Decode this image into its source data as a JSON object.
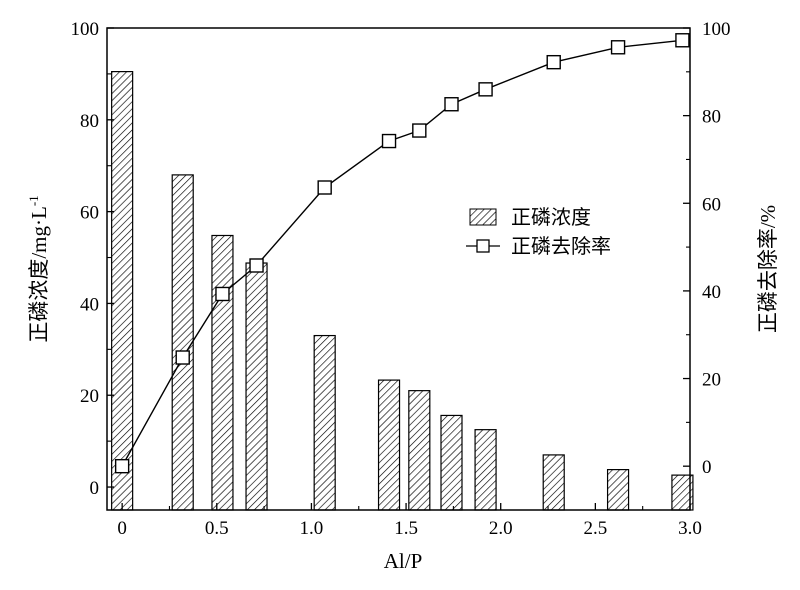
{
  "chart_data": {
    "type": "bar+line",
    "xlabel": "Al/P",
    "ylabel_left": "正磷浓度/mg·L",
    "ylabel_left_superscript": "-1",
    "ylabel_right": "正磷去除率/%",
    "xlim": [
      -0.08,
      3.0
    ],
    "ylim_left": [
      -5,
      100
    ],
    "ylim_right": [
      -10,
      100
    ],
    "x_ticks": [
      0,
      0.5,
      1.0,
      1.5,
      2.0,
      2.5,
      3.0
    ],
    "x_tick_labels": [
      "0",
      "0.5",
      "1.0",
      "1.5",
      "2.0",
      "2.5",
      "3.0"
    ],
    "y_left_ticks": [
      0,
      20,
      40,
      60,
      80,
      100
    ],
    "y_left_tick_labels": [
      "0",
      "20",
      "40",
      "60",
      "80",
      "100"
    ],
    "y_right_ticks": [
      0,
      20,
      40,
      60,
      80,
      100
    ],
    "y_right_tick_labels": [
      "0",
      "20",
      "40",
      "60",
      "80",
      "100"
    ],
    "x": [
      0,
      0.32,
      0.53,
      0.71,
      1.07,
      1.41,
      1.57,
      1.74,
      1.92,
      2.28,
      2.62,
      2.96
    ],
    "series": [
      {
        "name": "正磷浓度",
        "type": "bar",
        "axis": "left",
        "values": [
          90.5,
          68.0,
          54.8,
          48.8,
          33.0,
          23.3,
          21.0,
          15.6,
          12.5,
          7.0,
          3.8,
          2.6
        ]
      },
      {
        "name": "正磷去除率",
        "type": "line",
        "axis": "right",
        "marker": "open-square",
        "values": [
          0,
          24.8,
          39.3,
          45.8,
          63.6,
          74.2,
          76.6,
          82.6,
          86.0,
          92.2,
          95.6,
          97.2
        ]
      }
    ],
    "legend_position": "center-right",
    "grid": false
  }
}
